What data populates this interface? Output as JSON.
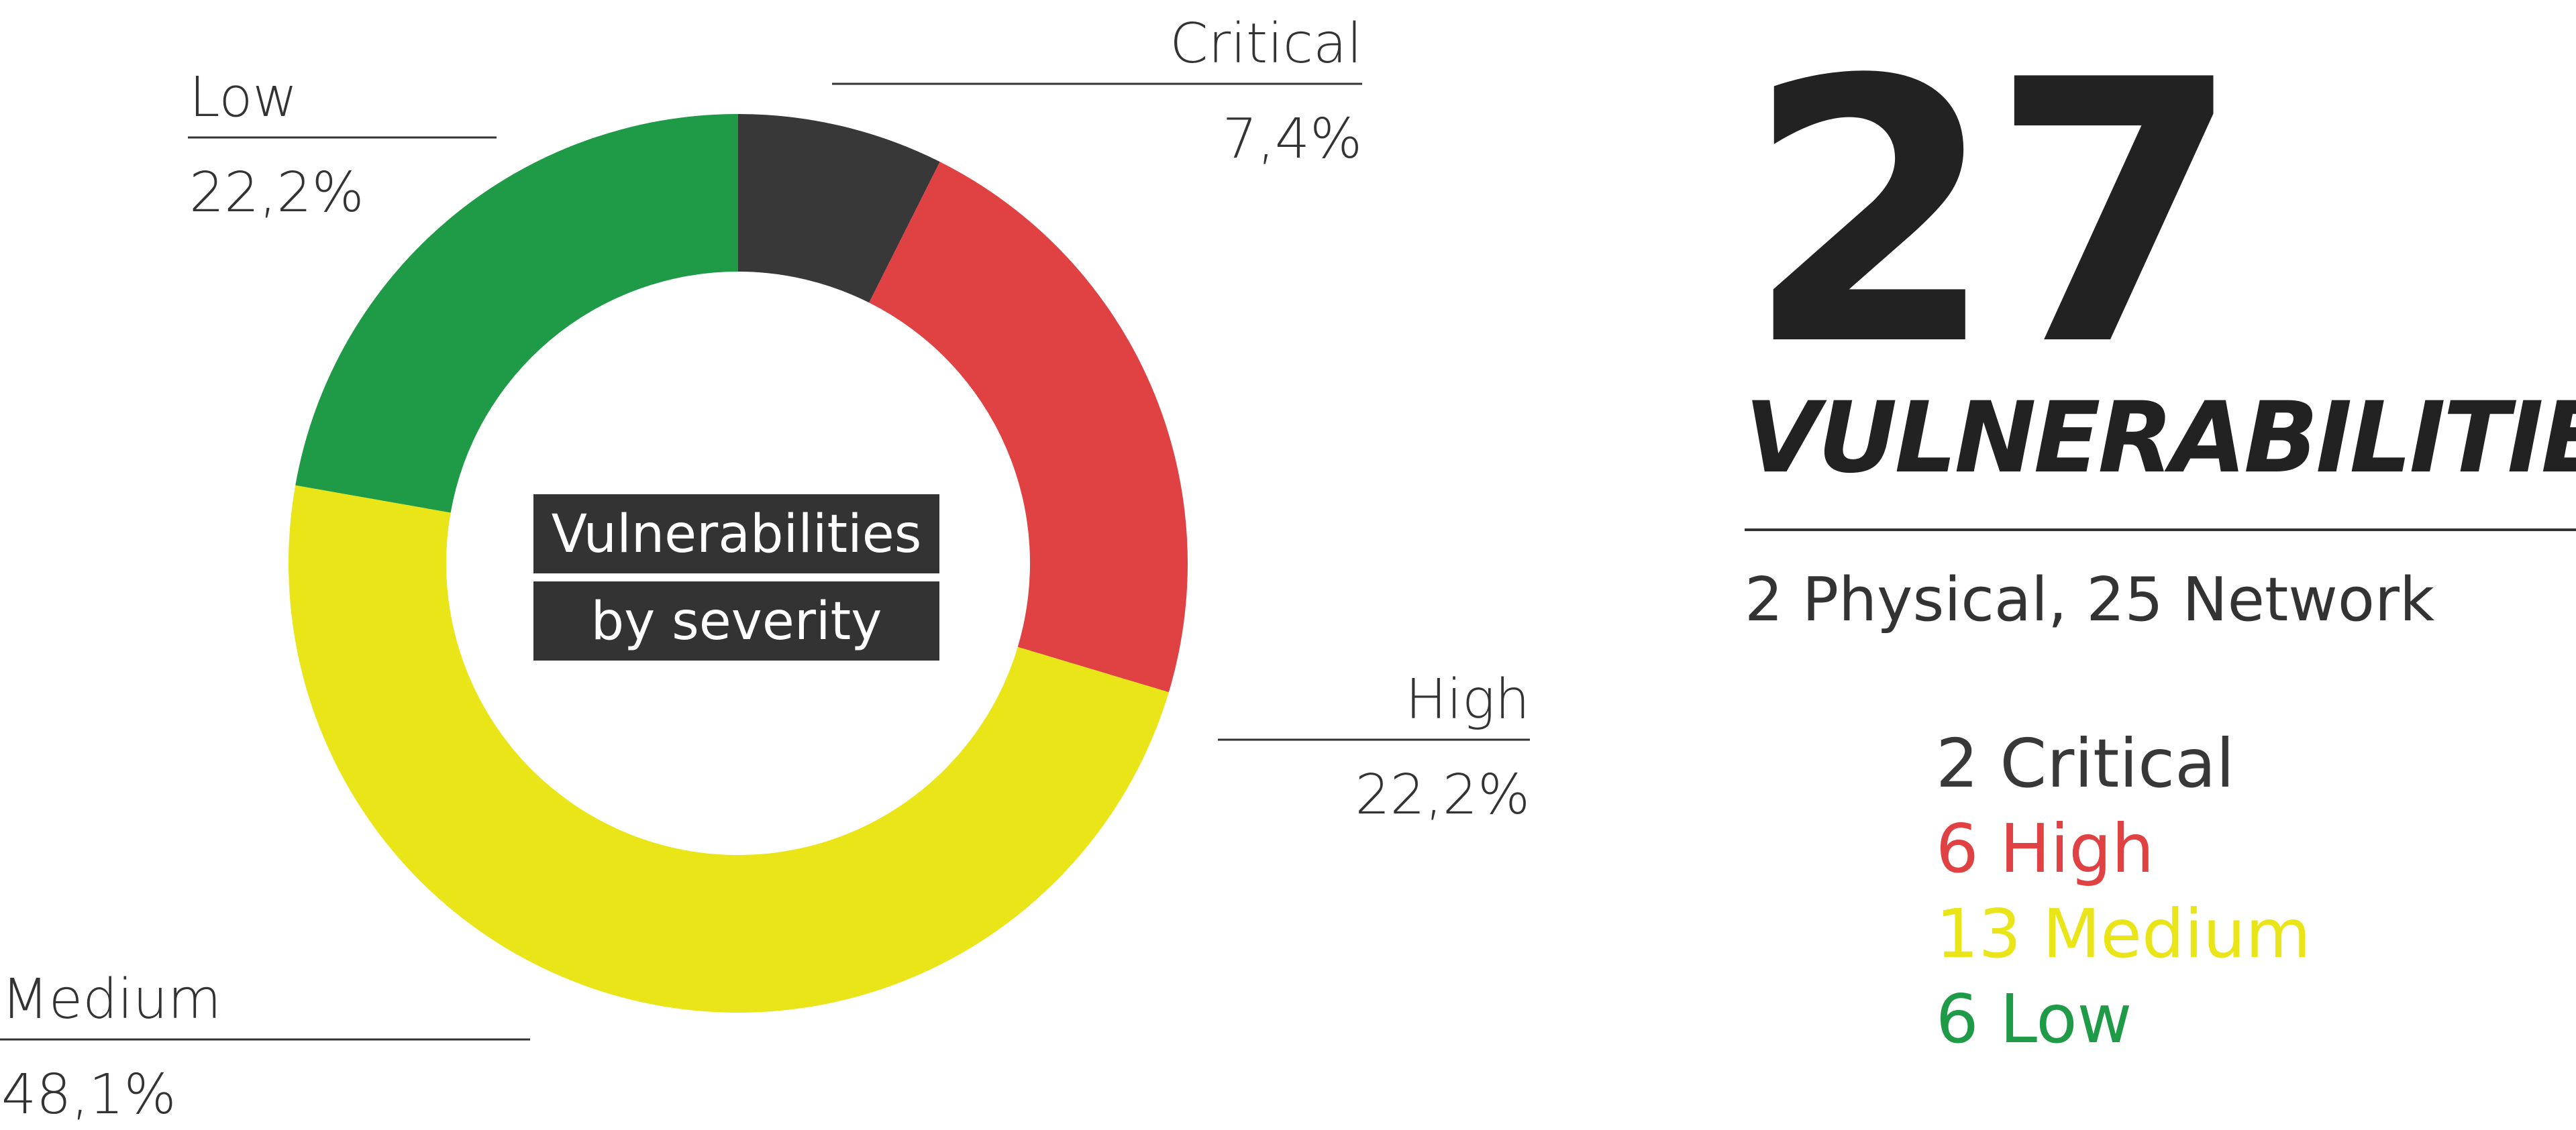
{
  "chart_data": {
    "type": "pie",
    "variant": "donut",
    "center_label": [
      "Vulnerabilities",
      "by severity"
    ],
    "slices": [
      {
        "name": "Critical",
        "value": 7.4,
        "display": "7,4%",
        "color": "#383838"
      },
      {
        "name": "High",
        "value": 22.2,
        "display": "22,2%",
        "color": "#e04142"
      },
      {
        "name": "Medium",
        "value": 48.1,
        "display": "48,1%",
        "color": "#e9e519"
      },
      {
        "name": "Low",
        "value": 22.2,
        "display": "22,2%",
        "color": "#1f9a46"
      }
    ]
  },
  "summary": {
    "total": "27",
    "label": "VULNERABILITIES",
    "breakdown": "2 Physical, 25 Network",
    "counts": [
      {
        "text": "2 Critical",
        "color": "#383838"
      },
      {
        "text": "6 High",
        "color": "#e04142"
      },
      {
        "text": "13 Medium",
        "color": "#e9e519"
      },
      {
        "text": "6 Low",
        "color": "#1f9a46"
      }
    ]
  }
}
